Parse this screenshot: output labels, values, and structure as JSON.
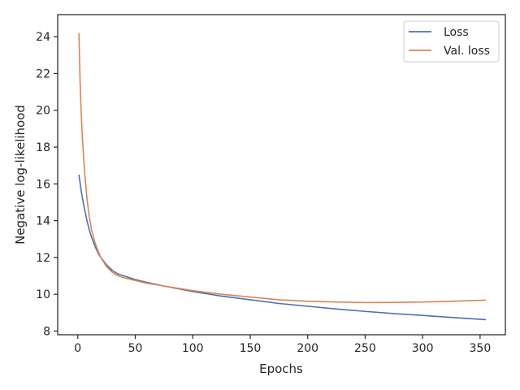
{
  "chart_data": {
    "type": "line",
    "xlabel": "Epochs",
    "ylabel": "Negative log-likelihood",
    "xlim": [
      -17.5,
      372
    ],
    "ylim": [
      7.8,
      25.2
    ],
    "xticks": [
      0,
      50,
      100,
      150,
      200,
      250,
      300,
      350
    ],
    "yticks": [
      8,
      10,
      12,
      14,
      16,
      18,
      20,
      22,
      24
    ],
    "grid": false,
    "legend_position": "top-right",
    "series": [
      {
        "name": "Loss",
        "color": "#4c72b0",
        "x": [
          1,
          3,
          5,
          8,
          10,
          12,
          15,
          18,
          20,
          25,
          30,
          35,
          40,
          50,
          60,
          75,
          100,
          125,
          150,
          175,
          200,
          225,
          250,
          275,
          300,
          325,
          340,
          355
        ],
        "y": [
          16.5,
          15.6,
          14.9,
          14.0,
          13.5,
          13.1,
          12.6,
          12.2,
          12.0,
          11.6,
          11.3,
          11.1,
          11.0,
          10.8,
          10.65,
          10.45,
          10.15,
          9.9,
          9.7,
          9.5,
          9.35,
          9.2,
          9.07,
          8.95,
          8.85,
          8.74,
          8.68,
          8.62
        ]
      },
      {
        "name": "Val. loss",
        "color": "#dd8452",
        "x": [
          1,
          2,
          3,
          4,
          5,
          6,
          8,
          10,
          12,
          15,
          18,
          20,
          25,
          30,
          35,
          40,
          50,
          60,
          75,
          100,
          125,
          150,
          175,
          200,
          225,
          250,
          275,
          300,
          325,
          340,
          355
        ],
        "y": [
          24.2,
          21.5,
          19.8,
          18.5,
          17.5,
          16.6,
          15.2,
          14.2,
          13.5,
          12.8,
          12.3,
          12.0,
          11.5,
          11.2,
          11.0,
          10.9,
          10.75,
          10.6,
          10.45,
          10.2,
          10.0,
          9.85,
          9.7,
          9.62,
          9.58,
          9.55,
          9.56,
          9.58,
          9.62,
          9.65,
          9.68
        ]
      }
    ]
  }
}
